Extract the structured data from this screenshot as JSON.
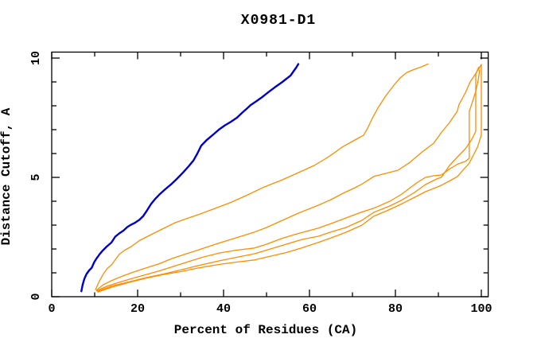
{
  "header": {
    "title": "X0981-D1"
  },
  "chart_data": {
    "type": "line",
    "title": "X0981-D1",
    "xlabel": "Percent of Residues (CA)",
    "ylabel": "Distance Cutoff, A",
    "xlim": [
      0,
      101.6
    ],
    "ylim": [
      0,
      10.25
    ],
    "grid": false,
    "legend": "none",
    "x_major_ticks": [
      0,
      20,
      40,
      60,
      80,
      100
    ],
    "x_minor_ticks": [
      10,
      30,
      50,
      70,
      90
    ],
    "y_major_ticks": [
      0,
      5,
      10
    ],
    "y_minor_ticks": [
      1,
      2,
      3,
      4,
      6,
      7,
      8,
      9
    ],
    "colors": {
      "blue": "#0000cc",
      "orange": "#ff8c00",
      "axis": "#000000"
    },
    "series": [
      {
        "name": "blue-curve",
        "color": "#0000cc",
        "width": 2.4,
        "points": [
          [
            6.9,
            0.23
          ],
          [
            7.2,
            0.5
          ],
          [
            7.6,
            0.75
          ],
          [
            8.1,
            0.95
          ],
          [
            8.7,
            1.1
          ],
          [
            9.3,
            1.21
          ],
          [
            9.9,
            1.45
          ],
          [
            10.5,
            1.62
          ],
          [
            11.1,
            1.77
          ],
          [
            11.8,
            1.92
          ],
          [
            12.8,
            2.1
          ],
          [
            13.9,
            2.27
          ],
          [
            14.8,
            2.52
          ],
          [
            15.7,
            2.65
          ],
          [
            16.7,
            2.77
          ],
          [
            17.6,
            2.92
          ],
          [
            18.5,
            3.02
          ],
          [
            19.4,
            3.1
          ],
          [
            20.4,
            3.22
          ],
          [
            21.3,
            3.38
          ],
          [
            22.2,
            3.62
          ],
          [
            23.1,
            3.88
          ],
          [
            24,
            4.08
          ],
          [
            25,
            4.27
          ],
          [
            26.4,
            4.5
          ],
          [
            27.8,
            4.71
          ],
          [
            29.2,
            4.95
          ],
          [
            30.6,
            5.21
          ],
          [
            31.8,
            5.45
          ],
          [
            33,
            5.71
          ],
          [
            33.9,
            6.0
          ],
          [
            34.8,
            6.33
          ],
          [
            36.1,
            6.57
          ],
          [
            37.5,
            6.78
          ],
          [
            38.9,
            7.0
          ],
          [
            40.3,
            7.18
          ],
          [
            41.7,
            7.33
          ],
          [
            43.1,
            7.5
          ],
          [
            44.4,
            7.72
          ],
          [
            45.4,
            7.88
          ],
          [
            46.3,
            8.03
          ],
          [
            47.7,
            8.2
          ],
          [
            49.1,
            8.38
          ],
          [
            50.5,
            8.58
          ],
          [
            51.9,
            8.77
          ],
          [
            53.7,
            9.0
          ],
          [
            55.6,
            9.27
          ],
          [
            56.3,
            9.45
          ],
          [
            56.9,
            9.6
          ],
          [
            57.4,
            9.75
          ]
        ]
      },
      {
        "name": "orange-curve-1",
        "color": "#ff8c00",
        "width": 1.3,
        "points": [
          [
            10.2,
            0.3
          ],
          [
            11,
            0.62
          ],
          [
            12,
            0.95
          ],
          [
            13,
            1.2
          ],
          [
            13.9,
            1.33
          ],
          [
            15,
            1.6
          ],
          [
            15.7,
            1.77
          ],
          [
            17,
            1.95
          ],
          [
            18.5,
            2.1
          ],
          [
            20.4,
            2.35
          ],
          [
            23.1,
            2.6
          ],
          [
            25.9,
            2.85
          ],
          [
            28.7,
            3.1
          ],
          [
            31.5,
            3.28
          ],
          [
            34.3,
            3.45
          ],
          [
            38,
            3.7
          ],
          [
            41.7,
            3.95
          ],
          [
            45.4,
            4.25
          ],
          [
            49.1,
            4.57
          ],
          [
            53.7,
            4.9
          ],
          [
            58.3,
            5.27
          ],
          [
            61.1,
            5.5
          ],
          [
            63.9,
            5.8
          ],
          [
            65.7,
            6.02
          ],
          [
            67.6,
            6.27
          ],
          [
            70.4,
            6.55
          ],
          [
            72.6,
            6.77
          ],
          [
            73.5,
            7.05
          ],
          [
            74.5,
            7.43
          ],
          [
            75.9,
            7.9
          ],
          [
            77.8,
            8.43
          ],
          [
            79.6,
            8.85
          ],
          [
            81.1,
            9.17
          ],
          [
            82.7,
            9.4
          ],
          [
            84.3,
            9.52
          ],
          [
            86,
            9.63
          ],
          [
            87.6,
            9.75
          ]
        ]
      },
      {
        "name": "orange-curve-2",
        "color": "#ff8c00",
        "width": 1.3,
        "points": [
          [
            10.4,
            0.27
          ],
          [
            12,
            0.5
          ],
          [
            14,
            0.68
          ],
          [
            16,
            0.83
          ],
          [
            18.5,
            1.0
          ],
          [
            21,
            1.15
          ],
          [
            23.1,
            1.27
          ],
          [
            25,
            1.38
          ],
          [
            28,
            1.6
          ],
          [
            31,
            1.78
          ],
          [
            34,
            1.95
          ],
          [
            36.1,
            2.08
          ],
          [
            39,
            2.25
          ],
          [
            41.7,
            2.4
          ],
          [
            44.4,
            2.55
          ],
          [
            47.2,
            2.71
          ],
          [
            50,
            2.9
          ],
          [
            53.7,
            3.2
          ],
          [
            57.4,
            3.5
          ],
          [
            62,
            3.83
          ],
          [
            64.8,
            4.05
          ],
          [
            68,
            4.35
          ],
          [
            70.4,
            4.55
          ],
          [
            72.2,
            4.72
          ],
          [
            75,
            5.04
          ],
          [
            77.8,
            5.17
          ],
          [
            80.6,
            5.3
          ],
          [
            83.3,
            5.62
          ],
          [
            86.1,
            6.05
          ],
          [
            88.9,
            6.43
          ],
          [
            90.7,
            6.88
          ],
          [
            92.6,
            7.3
          ],
          [
            94.4,
            7.77
          ],
          [
            94.8,
            8.05
          ],
          [
            96.3,
            8.55
          ],
          [
            97.4,
            9.0
          ],
          [
            98.7,
            9.35
          ],
          [
            100,
            9.73
          ]
        ]
      },
      {
        "name": "orange-curve-3",
        "color": "#ff8c00",
        "width": 1.3,
        "points": [
          [
            10.5,
            0.25
          ],
          [
            13,
            0.45
          ],
          [
            16,
            0.62
          ],
          [
            19,
            0.78
          ],
          [
            22,
            0.93
          ],
          [
            25,
            1.08
          ],
          [
            28,
            1.25
          ],
          [
            31.5,
            1.45
          ],
          [
            35,
            1.65
          ],
          [
            39,
            1.83
          ],
          [
            43,
            1.95
          ],
          [
            47.2,
            2.04
          ],
          [
            50,
            2.2
          ],
          [
            53.7,
            2.45
          ],
          [
            57.4,
            2.65
          ],
          [
            62,
            2.87
          ],
          [
            64.8,
            3.05
          ],
          [
            68.5,
            3.3
          ],
          [
            72.2,
            3.55
          ],
          [
            75,
            3.71
          ],
          [
            78.7,
            4.0
          ],
          [
            81.5,
            4.3
          ],
          [
            83.3,
            4.55
          ],
          [
            85.2,
            4.8
          ],
          [
            87,
            5.0
          ],
          [
            89,
            5.07
          ],
          [
            90.7,
            5.1
          ],
          [
            92.6,
            5.35
          ],
          [
            94.4,
            5.55
          ],
          [
            96.3,
            5.67
          ],
          [
            97.2,
            5.8
          ],
          [
            97.2,
            7.77
          ],
          [
            98,
            8.2
          ],
          [
            98.7,
            8.6
          ],
          [
            99.3,
            9.1
          ],
          [
            99.6,
            9.5
          ]
        ]
      },
      {
        "name": "orange-curve-4",
        "color": "#ff8c00",
        "width": 1.3,
        "points": [
          [
            10.6,
            0.22
          ],
          [
            14,
            0.45
          ],
          [
            18,
            0.62
          ],
          [
            22,
            0.8
          ],
          [
            26,
            0.95
          ],
          [
            30,
            1.12
          ],
          [
            34,
            1.3
          ],
          [
            38.9,
            1.5
          ],
          [
            43,
            1.65
          ],
          [
            47.2,
            1.8
          ],
          [
            50.9,
            2.0
          ],
          [
            54.6,
            2.2
          ],
          [
            58.3,
            2.4
          ],
          [
            62,
            2.53
          ],
          [
            64.8,
            2.7
          ],
          [
            68.5,
            2.9
          ],
          [
            72.2,
            3.2
          ],
          [
            75,
            3.54
          ],
          [
            78.7,
            3.8
          ],
          [
            81.5,
            4.05
          ],
          [
            84.3,
            4.35
          ],
          [
            87,
            4.7
          ],
          [
            89.8,
            4.95
          ],
          [
            90.7,
            5.0
          ],
          [
            92.6,
            5.5
          ],
          [
            94.4,
            5.85
          ],
          [
            96.3,
            6.2
          ],
          [
            97.8,
            6.6
          ],
          [
            98.7,
            6.93
          ],
          [
            98.7,
            9.33
          ],
          [
            99.4,
            9.62
          ]
        ]
      },
      {
        "name": "orange-curve-5",
        "color": "#ff8c00",
        "width": 1.3,
        "points": [
          [
            10.8,
            0.2
          ],
          [
            14,
            0.4
          ],
          [
            18,
            0.6
          ],
          [
            22,
            0.78
          ],
          [
            26,
            0.93
          ],
          [
            30,
            1.05
          ],
          [
            34,
            1.2
          ],
          [
            38.9,
            1.35
          ],
          [
            43,
            1.45
          ],
          [
            47.2,
            1.54
          ],
          [
            51,
            1.7
          ],
          [
            54.6,
            1.85
          ],
          [
            58.3,
            2.05
          ],
          [
            62,
            2.27
          ],
          [
            64.8,
            2.45
          ],
          [
            68.5,
            2.7
          ],
          [
            72.2,
            3.0
          ],
          [
            75,
            3.38
          ],
          [
            78,
            3.6
          ],
          [
            81,
            3.85
          ],
          [
            84.3,
            4.15
          ],
          [
            87,
            4.4
          ],
          [
            89.8,
            4.6
          ],
          [
            90.7,
            4.67
          ],
          [
            92.6,
            4.85
          ],
          [
            94.4,
            5.03
          ],
          [
            97.2,
            5.6
          ],
          [
            99.1,
            6.27
          ],
          [
            100,
            6.77
          ],
          [
            100,
            9.73
          ]
        ]
      }
    ]
  }
}
